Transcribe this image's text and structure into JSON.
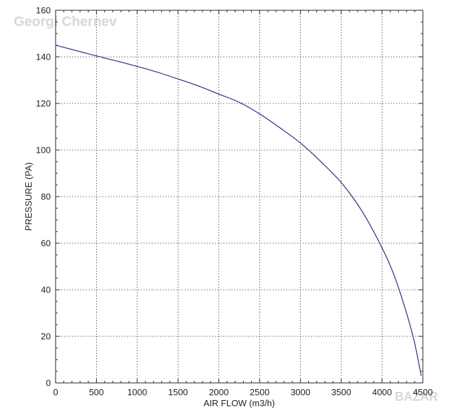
{
  "watermarks": {
    "top_left": "Georgi Chernev",
    "bottom_right": "BAZAR"
  },
  "chart_data": {
    "type": "line",
    "title": "",
    "xlabel": "AIR FLOW (m3/h)",
    "ylabel": "PRESSURE (PA)",
    "xlim": [
      0,
      4500
    ],
    "ylim": [
      0,
      160
    ],
    "x_ticks": [
      0,
      500,
      1000,
      1500,
      2000,
      2500,
      3000,
      3500,
      4000,
      4500
    ],
    "y_ticks": [
      0,
      20,
      40,
      60,
      80,
      100,
      120,
      140,
      160
    ],
    "minor_x_ticks": [
      100,
      200,
      300,
      400,
      600,
      700,
      800,
      900,
      1100,
      1200,
      1300,
      1400,
      1600,
      1700,
      1800,
      1900,
      2100,
      2200,
      2300,
      2400,
      2600,
      2700,
      2800,
      2900,
      3100,
      3200,
      3300,
      3400,
      3600,
      3700,
      3800,
      3900,
      4100,
      4200,
      4300,
      4400
    ],
    "minor_y_ticks": [
      5,
      10,
      15,
      25,
      30,
      35,
      45,
      50,
      55,
      65,
      70,
      75,
      85,
      90,
      95,
      105,
      110,
      115,
      125,
      130,
      135,
      145,
      150,
      155
    ],
    "grid": true,
    "legend": "none",
    "series": [
      {
        "color": "#3a3a8c",
        "x": [
          0,
          250,
          500,
          750,
          1000,
          1250,
          1500,
          1750,
          2000,
          2250,
          2500,
          2750,
          3000,
          3250,
          3500,
          3750,
          4000,
          4150,
          4300,
          4400,
          4480
        ],
        "y": [
          145,
          142.7,
          140.4,
          138.2,
          135.9,
          133.4,
          130.5,
          127.5,
          124,
          120.5,
          115.5,
          109.5,
          103,
          95,
          86,
          74,
          58,
          46,
          30,
          17,
          3
        ]
      }
    ]
  }
}
